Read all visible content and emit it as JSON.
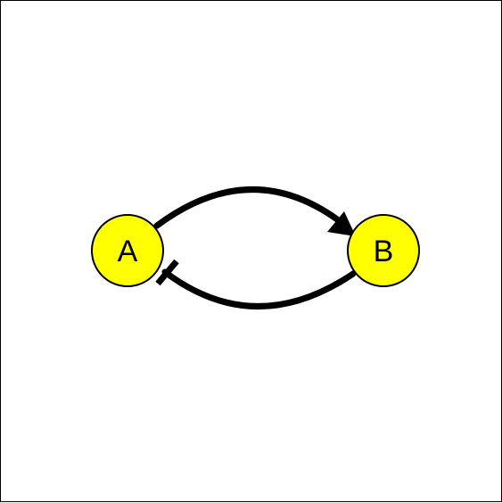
{
  "diagram": {
    "nodes": [
      {
        "id": "A",
        "label": "A"
      },
      {
        "id": "B",
        "label": "B"
      }
    ],
    "edges": [
      {
        "from": "A",
        "to": "B",
        "type": "activation"
      },
      {
        "from": "B",
        "to": "A",
        "type": "inhibition"
      }
    ],
    "colors": {
      "node_fill": "#ffff00",
      "node_stroke": "#000000",
      "edge": "#000000",
      "background": "#ffffff"
    }
  }
}
